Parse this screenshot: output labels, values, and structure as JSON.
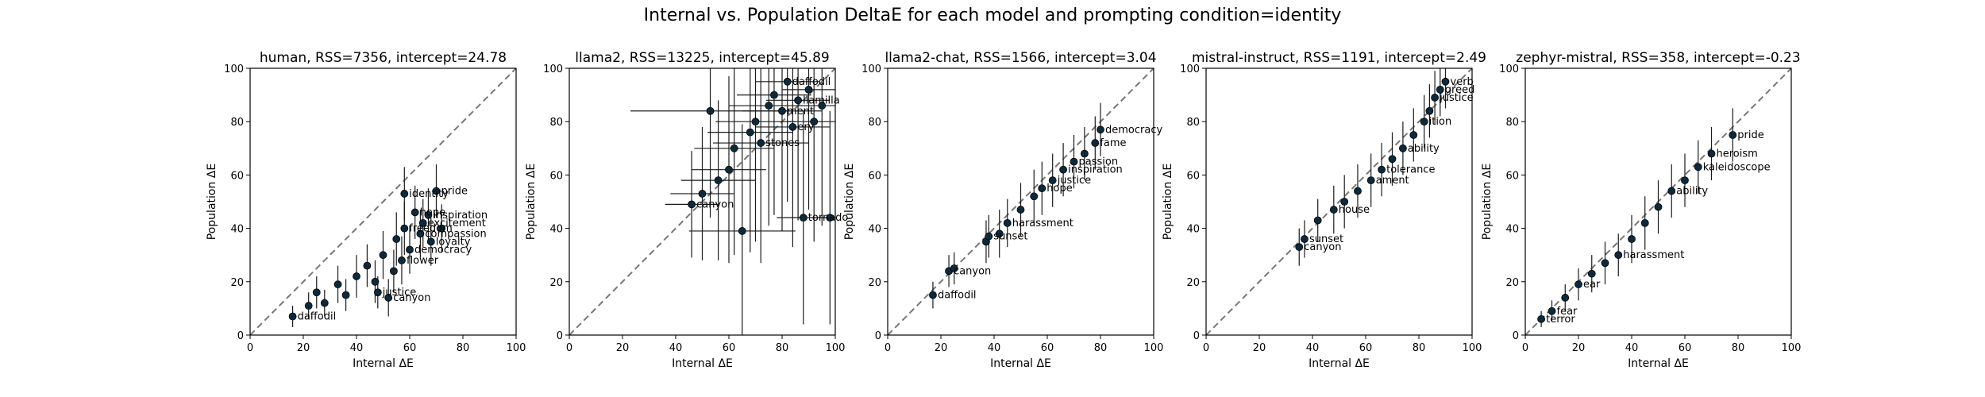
{
  "figure": {
    "title": "Internal vs. Population DeltaE for each model and prompting condition=identity"
  },
  "chart_data": [
    {
      "type": "scatter",
      "title": "human, RSS=7356, intercept=24.78",
      "xlabel": "Internal ΔE",
      "ylabel": "Population ΔE",
      "xlim": [
        0,
        100
      ],
      "ylim": [
        0,
        100
      ],
      "xticks": [
        "0",
        "20",
        "40",
        "60",
        "80",
        "100"
      ],
      "yticks": [
        "0",
        "20",
        "40",
        "60",
        "80",
        "100"
      ],
      "reference_line": "y = x (dashed)",
      "points": [
        {
          "x": 16,
          "y": 7,
          "xerr": 0,
          "yerr": 4,
          "label": "daffodil"
        },
        {
          "x": 22,
          "y": 11,
          "xerr": 0,
          "yerr": 5,
          "label": ""
        },
        {
          "x": 25,
          "y": 16,
          "xerr": 0,
          "yerr": 6,
          "label": ""
        },
        {
          "x": 28,
          "y": 12,
          "xerr": 0,
          "yerr": 5,
          "label": ""
        },
        {
          "x": 33,
          "y": 19,
          "xerr": 0,
          "yerr": 7,
          "label": ""
        },
        {
          "x": 36,
          "y": 15,
          "xerr": 0,
          "yerr": 6,
          "label": ""
        },
        {
          "x": 40,
          "y": 22,
          "xerr": 0,
          "yerr": 8,
          "label": ""
        },
        {
          "x": 44,
          "y": 26,
          "xerr": 0,
          "yerr": 8,
          "label": ""
        },
        {
          "x": 47,
          "y": 20,
          "xerr": 0,
          "yerr": 8,
          "label": ""
        },
        {
          "x": 50,
          "y": 30,
          "xerr": 0,
          "yerr": 9,
          "label": ""
        },
        {
          "x": 52,
          "y": 14,
          "xerr": 0,
          "yerr": 7,
          "label": "canyon"
        },
        {
          "x": 54,
          "y": 24,
          "xerr": 0,
          "yerr": 8,
          "label": ""
        },
        {
          "x": 55,
          "y": 36,
          "xerr": 0,
          "yerr": 10,
          "label": ""
        },
        {
          "x": 57,
          "y": 28,
          "xerr": 0,
          "yerr": 9,
          "label": "flower"
        },
        {
          "x": 58,
          "y": 40,
          "xerr": 0,
          "yerr": 10,
          "label": "freedom"
        },
        {
          "x": 60,
          "y": 32,
          "xerr": 0,
          "yerr": 9,
          "label": "democracy"
        },
        {
          "x": 62,
          "y": 46,
          "xerr": 0,
          "yerr": 10,
          "label": "hope"
        },
        {
          "x": 64,
          "y": 38,
          "xerr": 0,
          "yerr": 9,
          "label": "compassion"
        },
        {
          "x": 65,
          "y": 42,
          "xerr": 0,
          "yerr": 9,
          "label": "excitement"
        },
        {
          "x": 67,
          "y": 45,
          "xerr": 0,
          "yerr": 10,
          "label": "inspiration"
        },
        {
          "x": 68,
          "y": 35,
          "xerr": 0,
          "yerr": 9,
          "label": "loyalty"
        },
        {
          "x": 70,
          "y": 54,
          "xerr": 0,
          "yerr": 10,
          "label": "pride"
        },
        {
          "x": 72,
          "y": 40,
          "xerr": 0,
          "yerr": 9,
          "label": ""
        },
        {
          "x": 58,
          "y": 53,
          "xerr": 0,
          "yerr": 10,
          "label": "identity"
        },
        {
          "x": 48,
          "y": 16,
          "xerr": 0,
          "yerr": 6,
          "label": "justice"
        }
      ]
    },
    {
      "type": "scatter",
      "title": "llama2, RSS=13225, intercept=45.89",
      "xlabel": "Internal ΔE",
      "ylabel": "Population ΔE",
      "xlim": [
        0,
        100
      ],
      "ylim": [
        0,
        100
      ],
      "xticks": [
        "0",
        "20",
        "40",
        "60",
        "80",
        "100"
      ],
      "yticks": [
        "0",
        "20",
        "40",
        "60",
        "80",
        "100"
      ],
      "reference_line": "y = x (dashed)",
      "points": [
        {
          "x": 46,
          "y": 49,
          "xerr": 10,
          "yerr": 20,
          "label": "canyon"
        },
        {
          "x": 50,
          "y": 53,
          "xerr": 12,
          "yerr": 25,
          "label": ""
        },
        {
          "x": 53,
          "y": 84,
          "xerr": 30,
          "yerr": 40,
          "label": ""
        },
        {
          "x": 56,
          "y": 58,
          "xerr": 14,
          "yerr": 30,
          "label": ""
        },
        {
          "x": 60,
          "y": 62,
          "xerr": 14,
          "yerr": 35,
          "label": ""
        },
        {
          "x": 62,
          "y": 70,
          "xerr": 15,
          "yerr": 40,
          "label": ""
        },
        {
          "x": 65,
          "y": 39,
          "xerr": 20,
          "yerr": 40,
          "label": ""
        },
        {
          "x": 68,
          "y": 76,
          "xerr": 16,
          "yerr": 45,
          "label": ""
        },
        {
          "x": 70,
          "y": 80,
          "xerr": 15,
          "yerr": 45,
          "label": ""
        },
        {
          "x": 72,
          "y": 72,
          "xerr": 18,
          "yerr": 45,
          "label": "stones"
        },
        {
          "x": 75,
          "y": 86,
          "xerr": 15,
          "yerr": 45,
          "label": ""
        },
        {
          "x": 77,
          "y": 90,
          "xerr": 14,
          "yerr": 45,
          "label": ""
        },
        {
          "x": 80,
          "y": 84,
          "xerr": 15,
          "yerr": 45,
          "label": "ment"
        },
        {
          "x": 82,
          "y": 95,
          "xerr": 12,
          "yerr": 45,
          "label": "daffodil"
        },
        {
          "x": 84,
          "y": 78,
          "xerr": 14,
          "yerr": 45,
          "label": "ery"
        },
        {
          "x": 86,
          "y": 88,
          "xerr": 12,
          "yerr": 45,
          "label": "llamilla"
        },
        {
          "x": 88,
          "y": 44,
          "xerr": 10,
          "yerr": 40,
          "label": "tornado"
        },
        {
          "x": 90,
          "y": 92,
          "xerr": 10,
          "yerr": 45,
          "label": ""
        },
        {
          "x": 92,
          "y": 80,
          "xerr": 10,
          "yerr": 45,
          "label": ""
        },
        {
          "x": 95,
          "y": 86,
          "xerr": 8,
          "yerr": 45,
          "label": ""
        },
        {
          "x": 98,
          "y": 44,
          "xerr": 6,
          "yerr": 40,
          "label": ""
        }
      ]
    },
    {
      "type": "scatter",
      "title": "llama2-chat, RSS=1566, intercept=3.04",
      "xlabel": "Internal ΔE",
      "ylabel": "Population ΔE",
      "xlim": [
        0,
        100
      ],
      "ylim": [
        0,
        100
      ],
      "xticks": [
        "0",
        "20",
        "40",
        "60",
        "80",
        "100"
      ],
      "yticks": [
        "0",
        "20",
        "40",
        "60",
        "80",
        "100"
      ],
      "reference_line": "y = x (dashed)",
      "points": [
        {
          "x": 17,
          "y": 15,
          "xerr": 0,
          "yerr": 5,
          "label": "daffodil"
        },
        {
          "x": 23,
          "y": 24,
          "xerr": 0,
          "yerr": 6,
          "label": "canyon"
        },
        {
          "x": 25,
          "y": 25,
          "xerr": 0,
          "yerr": 6,
          "label": ""
        },
        {
          "x": 37,
          "y": 35,
          "xerr": 0,
          "yerr": 8,
          "label": ""
        },
        {
          "x": 38,
          "y": 37,
          "xerr": 0,
          "yerr": 8,
          "label": "sunset"
        },
        {
          "x": 42,
          "y": 38,
          "xerr": 0,
          "yerr": 9,
          "label": ""
        },
        {
          "x": 45,
          "y": 42,
          "xerr": 0,
          "yerr": 9,
          "label": "harassment"
        },
        {
          "x": 50,
          "y": 47,
          "xerr": 0,
          "yerr": 10,
          "label": ""
        },
        {
          "x": 55,
          "y": 52,
          "xerr": 0,
          "yerr": 10,
          "label": ""
        },
        {
          "x": 58,
          "y": 55,
          "xerr": 0,
          "yerr": 10,
          "label": "hope"
        },
        {
          "x": 62,
          "y": 58,
          "xerr": 0,
          "yerr": 10,
          "label": "justice"
        },
        {
          "x": 66,
          "y": 62,
          "xerr": 0,
          "yerr": 10,
          "label": "inspiration"
        },
        {
          "x": 70,
          "y": 65,
          "xerr": 0,
          "yerr": 10,
          "label": "passion"
        },
        {
          "x": 74,
          "y": 68,
          "xerr": 0,
          "yerr": 10,
          "label": ""
        },
        {
          "x": 78,
          "y": 72,
          "xerr": 0,
          "yerr": 10,
          "label": "fame"
        },
        {
          "x": 80,
          "y": 77,
          "xerr": 0,
          "yerr": 10,
          "label": "democracy"
        }
      ]
    },
    {
      "type": "scatter",
      "title": "mistral-instruct, RSS=1191, intercept=2.49",
      "xlabel": "Internal ΔE",
      "ylabel": "Population ΔE",
      "xlim": [
        0,
        100
      ],
      "ylim": [
        0,
        100
      ],
      "xticks": [
        "0",
        "20",
        "40",
        "60",
        "80",
        "100"
      ],
      "yticks": [
        "0",
        "20",
        "40",
        "60",
        "80",
        "100"
      ],
      "reference_line": "y = x (dashed)",
      "points": [
        {
          "x": 35,
          "y": 33,
          "xerr": 0,
          "yerr": 7,
          "label": "canyon"
        },
        {
          "x": 37,
          "y": 36,
          "xerr": 0,
          "yerr": 7,
          "label": "sunset"
        },
        {
          "x": 42,
          "y": 43,
          "xerr": 0,
          "yerr": 8,
          "label": ""
        },
        {
          "x": 48,
          "y": 47,
          "xerr": 0,
          "yerr": 9,
          "label": "house"
        },
        {
          "x": 52,
          "y": 50,
          "xerr": 0,
          "yerr": 10,
          "label": ""
        },
        {
          "x": 57,
          "y": 54,
          "xerr": 0,
          "yerr": 10,
          "label": ""
        },
        {
          "x": 62,
          "y": 58,
          "xerr": 0,
          "yerr": 10,
          "label": "ament"
        },
        {
          "x": 66,
          "y": 62,
          "xerr": 0,
          "yerr": 10,
          "label": "tolerance"
        },
        {
          "x": 70,
          "y": 66,
          "xerr": 0,
          "yerr": 10,
          "label": ""
        },
        {
          "x": 74,
          "y": 70,
          "xerr": 0,
          "yerr": 10,
          "label": "ability"
        },
        {
          "x": 78,
          "y": 75,
          "xerr": 0,
          "yerr": 10,
          "label": ""
        },
        {
          "x": 82,
          "y": 80,
          "xerr": 0,
          "yerr": 10,
          "label": "ition"
        },
        {
          "x": 84,
          "y": 84,
          "xerr": 0,
          "yerr": 10,
          "label": ""
        },
        {
          "x": 86,
          "y": 89,
          "xerr": 0,
          "yerr": 10,
          "label": "justice"
        },
        {
          "x": 88,
          "y": 92,
          "xerr": 0,
          "yerr": 10,
          "label": "greed"
        },
        {
          "x": 90,
          "y": 95,
          "xerr": 0,
          "yerr": 10,
          "label": "verb"
        }
      ]
    },
    {
      "type": "scatter",
      "title": "zephyr-mistral, RSS=358, intercept=-0.23",
      "xlabel": "Internal ΔE",
      "ylabel": "Population ΔE",
      "xlim": [
        0,
        100
      ],
      "ylim": [
        0,
        100
      ],
      "xticks": [
        "0",
        "20",
        "40",
        "60",
        "80",
        "100"
      ],
      "yticks": [
        "0",
        "20",
        "40",
        "60",
        "80",
        "100"
      ],
      "reference_line": "y = x (dashed)",
      "points": [
        {
          "x": 6,
          "y": 6,
          "xerr": 0,
          "yerr": 3,
          "label": "terror"
        },
        {
          "x": 10,
          "y": 9,
          "xerr": 0,
          "yerr": 4,
          "label": "fear"
        },
        {
          "x": 15,
          "y": 14,
          "xerr": 0,
          "yerr": 5,
          "label": ""
        },
        {
          "x": 20,
          "y": 19,
          "xerr": 0,
          "yerr": 6,
          "label": "ear"
        },
        {
          "x": 25,
          "y": 23,
          "xerr": 0,
          "yerr": 7,
          "label": ""
        },
        {
          "x": 30,
          "y": 27,
          "xerr": 0,
          "yerr": 8,
          "label": ""
        },
        {
          "x": 35,
          "y": 30,
          "xerr": 0,
          "yerr": 8,
          "label": "harassment"
        },
        {
          "x": 40,
          "y": 36,
          "xerr": 0,
          "yerr": 9,
          "label": ""
        },
        {
          "x": 45,
          "y": 42,
          "xerr": 0,
          "yerr": 10,
          "label": ""
        },
        {
          "x": 50,
          "y": 48,
          "xerr": 0,
          "yerr": 10,
          "label": ""
        },
        {
          "x": 55,
          "y": 54,
          "xerr": 0,
          "yerr": 10,
          "label": "ability"
        },
        {
          "x": 60,
          "y": 58,
          "xerr": 0,
          "yerr": 10,
          "label": ""
        },
        {
          "x": 65,
          "y": 63,
          "xerr": 0,
          "yerr": 10,
          "label": "kaleidoscope"
        },
        {
          "x": 70,
          "y": 68,
          "xerr": 0,
          "yerr": 10,
          "label": "heroism"
        },
        {
          "x": 78,
          "y": 75,
          "xerr": 0,
          "yerr": 10,
          "label": "pride"
        }
      ]
    }
  ]
}
